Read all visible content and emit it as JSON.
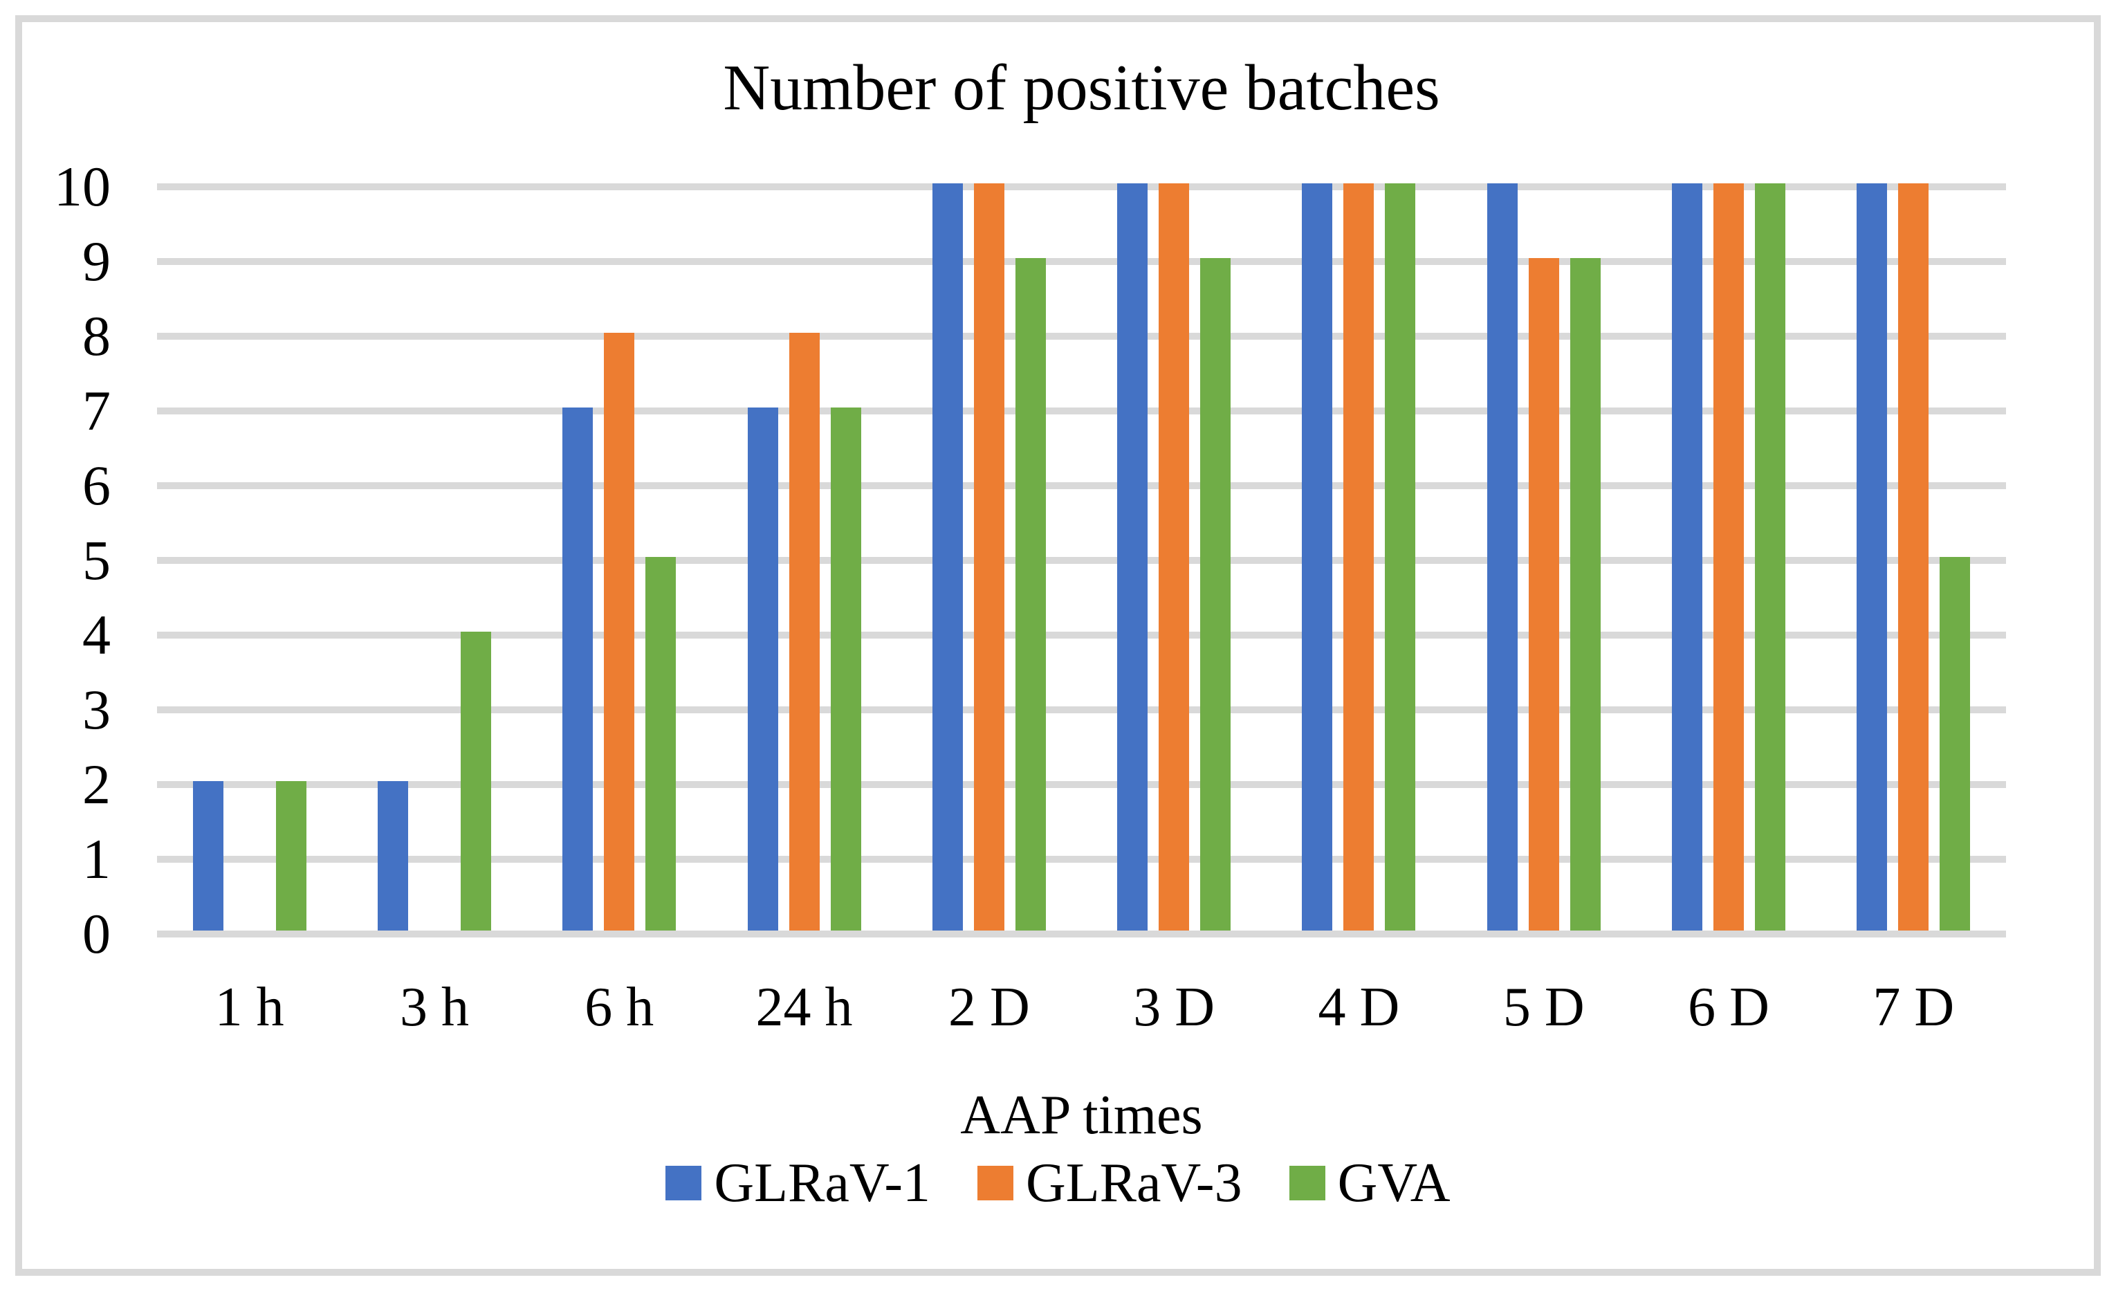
{
  "chart_data": {
    "type": "bar",
    "title": "Number of positive batches",
    "xlabel": "AAP times",
    "ylabel": "",
    "categories": [
      "1 h",
      "3 h",
      "6 h",
      "24 h",
      "2 D",
      "3 D",
      "4 D",
      "5 D",
      "6 D",
      "7 D"
    ],
    "series": [
      {
        "name": "GLRaV-1",
        "color": "#4472C4",
        "values": [
          2,
          2,
          7,
          7,
          10,
          10,
          10,
          10,
          10,
          10
        ]
      },
      {
        "name": "GLRaV-3",
        "color": "#ED7D31",
        "values": [
          0,
          0,
          8,
          8,
          10,
          10,
          10,
          9,
          10,
          10
        ]
      },
      {
        "name": "GVA",
        "color": "#70AD47",
        "values": [
          2,
          4,
          5,
          7,
          9,
          9,
          10,
          9,
          10,
          5
        ]
      }
    ],
    "ylim": [
      0,
      10
    ],
    "yticks": [
      0,
      1,
      2,
      3,
      4,
      5,
      6,
      7,
      8,
      9,
      10
    ],
    "grid": true,
    "legend_position": "bottom",
    "colors": {
      "gridline": "#D9D9D9",
      "frame_border": "#D9D9D9",
      "text": "#000000"
    }
  }
}
